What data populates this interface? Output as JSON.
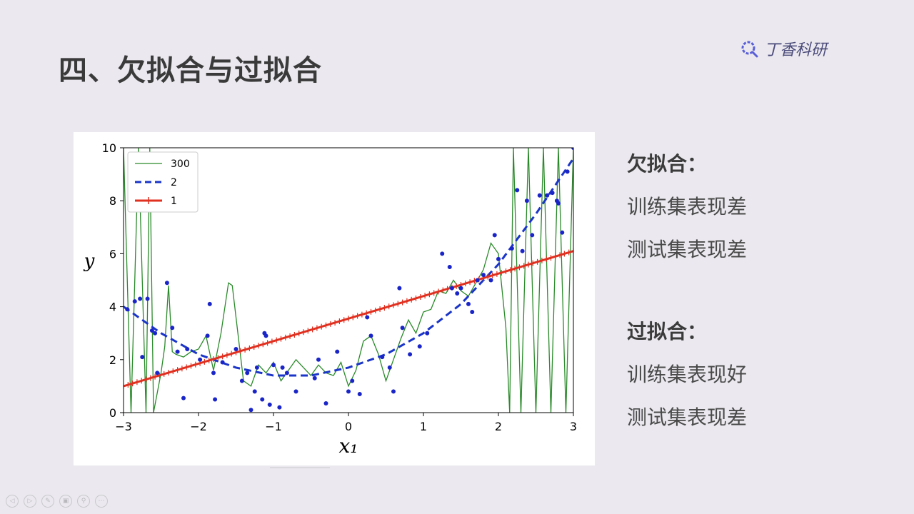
{
  "slide": {
    "title": "四、欠拟合与过拟合",
    "brand": "丁香科研"
  },
  "underfit": {
    "heading": "欠拟合：",
    "lines": [
      "训练集表现差",
      "测试集表现差"
    ]
  },
  "overfit": {
    "heading": "过拟合：",
    "lines": [
      "训练集表现好",
      "测试集表现差"
    ]
  },
  "controls": [
    "prev-icon",
    "next-icon",
    "pen-icon",
    "copy-icon",
    "zoom-icon",
    "more-icon"
  ],
  "chart_data": {
    "type": "line",
    "xlabel": "x₁",
    "ylabel": "y",
    "xlim": [
      -3,
      3
    ],
    "ylim": [
      0,
      10
    ],
    "xticks": [
      -3,
      -2,
      -1,
      0,
      1,
      2,
      3
    ],
    "xtick_labels": [
      "−3",
      "−2",
      "−1",
      "0",
      "1",
      "2",
      "3"
    ],
    "yticks": [
      0,
      2,
      4,
      6,
      8,
      10
    ],
    "ytick_labels": [
      "0",
      "2",
      "4",
      "6",
      "8",
      "10"
    ],
    "legend_position": "top-left",
    "series": [
      {
        "name": "300",
        "style": "solid-thin",
        "color": "#2a8a2a",
        "x": [
          -3.0,
          -2.9,
          -2.8,
          -2.7,
          -2.65,
          -2.6,
          -2.5,
          -2.45,
          -2.4,
          -2.35,
          -2.3,
          -2.2,
          -2.1,
          -2.0,
          -1.9,
          -1.8,
          -1.7,
          -1.6,
          -1.55,
          -1.5,
          -1.4,
          -1.3,
          -1.2,
          -1.1,
          -1.0,
          -0.9,
          -0.8,
          -0.7,
          -0.6,
          -0.5,
          -0.4,
          -0.3,
          -0.2,
          -0.1,
          0.0,
          0.1,
          0.2,
          0.3,
          0.4,
          0.5,
          0.6,
          0.7,
          0.8,
          0.9,
          1.0,
          1.1,
          1.2,
          1.3,
          1.4,
          1.5,
          1.6,
          1.7,
          1.8,
          1.9,
          2.0,
          2.1,
          2.15,
          2.2,
          2.3,
          2.4,
          2.5,
          2.6,
          2.7,
          2.8,
          2.9,
          3.0
        ],
        "y": [
          10,
          0,
          10,
          0,
          10,
          0,
          1.5,
          2.5,
          4.8,
          2.3,
          2.2,
          2.1,
          2.3,
          2.4,
          2.9,
          1.6,
          3.0,
          4.9,
          4.8,
          3.6,
          1.2,
          1.0,
          1.8,
          1.5,
          1.9,
          1.2,
          1.6,
          2.0,
          1.7,
          1.4,
          1.8,
          1.5,
          1.4,
          1.9,
          1.0,
          1.6,
          2.7,
          2.9,
          2.2,
          1.2,
          2.0,
          2.8,
          3.5,
          3.0,
          3.8,
          3.9,
          4.6,
          4.5,
          5.0,
          4.6,
          4.4,
          4.9,
          5.4,
          6.4,
          6.0,
          3.2,
          0,
          10,
          0,
          10,
          0,
          10,
          0,
          10,
          0,
          10
        ]
      },
      {
        "name": "2",
        "style": "dashed",
        "color": "#1a35c8",
        "x": [
          -3,
          -2.5,
          -2,
          -1.5,
          -1,
          -0.5,
          0,
          0.5,
          1,
          1.5,
          2,
          2.5,
          3
        ],
        "y": [
          4.0,
          3.0,
          2.2,
          1.7,
          1.4,
          1.4,
          1.7,
          2.2,
          3.0,
          4.1,
          5.6,
          7.5,
          9.6
        ]
      },
      {
        "name": "1",
        "style": "solid-cross",
        "color": "#e03020",
        "x": [
          -3,
          3
        ],
        "y": [
          1.0,
          6.1
        ]
      },
      {
        "name": "",
        "style": "points",
        "color": "#1a25c8",
        "x": [
          -2.95,
          -2.85,
          -2.78,
          -2.75,
          -2.68,
          -2.62,
          -2.58,
          -2.55,
          -2.42,
          -2.35,
          -2.28,
          -2.2,
          -2.15,
          -1.98,
          -1.88,
          -1.85,
          -1.8,
          -1.78,
          -1.68,
          -1.5,
          -1.42,
          -1.35,
          -1.3,
          -1.25,
          -1.22,
          -1.15,
          -1.12,
          -1.1,
          -1.05,
          -1.0,
          -0.92,
          -0.88,
          -0.82,
          -0.7,
          -0.45,
          -0.4,
          -0.3,
          -0.15,
          0.0,
          0.05,
          0.15,
          0.25,
          0.3,
          0.45,
          0.55,
          0.6,
          0.68,
          0.72,
          0.82,
          0.95,
          1.05,
          1.25,
          1.35,
          1.38,
          1.45,
          1.5,
          1.6,
          1.65,
          1.72,
          1.8,
          1.9,
          1.95,
          2.0,
          2.18,
          2.25,
          2.32,
          2.38,
          2.45,
          2.55,
          2.65,
          2.72,
          2.78,
          2.8,
          2.85,
          2.92,
          3.0
        ],
        "y": [
          3.9,
          4.2,
          4.3,
          2.1,
          4.3,
          3.1,
          3.0,
          1.5,
          4.9,
          3.2,
          2.3,
          0.55,
          2.4,
          2.0,
          2.9,
          4.1,
          1.5,
          0.5,
          1.9,
          2.4,
          1.2,
          1.5,
          0.1,
          0.8,
          1.7,
          0.5,
          3.0,
          2.9,
          0.3,
          1.8,
          0.2,
          1.7,
          1.5,
          0.8,
          1.3,
          2.0,
          0.35,
          2.3,
          0.8,
          1.2,
          0.7,
          3.6,
          2.9,
          2.1,
          1.7,
          0.8,
          4.7,
          3.2,
          2.2,
          2.5,
          3.0,
          6.0,
          5.5,
          4.7,
          4.5,
          4.7,
          4.1,
          3.8,
          5.0,
          5.2,
          5.0,
          6.7,
          5.8,
          6.2,
          8.4,
          6.1,
          8.0,
          6.7,
          8.2,
          8.2,
          8.3,
          8.0,
          7.9,
          6.8,
          9.1,
          10.0
        ]
      }
    ]
  }
}
